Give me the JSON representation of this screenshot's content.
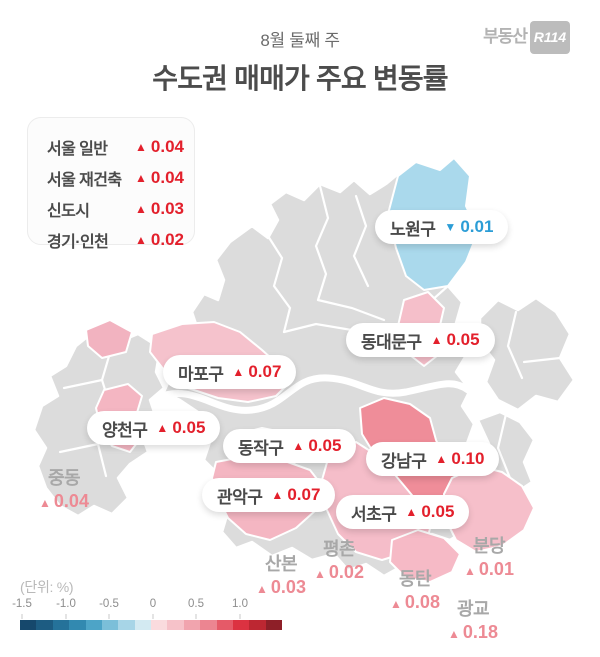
{
  "header": {
    "subtitle": "8월 둘째 주",
    "title": "수도권 매매가 주요 변동률"
  },
  "logo": {
    "text": "부동산",
    "badge": "R114"
  },
  "summary": {
    "items": [
      {
        "label": "서울 일반",
        "arrow": "▲",
        "value": "0.04",
        "direction": "up"
      },
      {
        "label": "서울 재건축",
        "arrow": "▲",
        "value": "0.04",
        "direction": "up"
      },
      {
        "label": "신도시",
        "arrow": "▲",
        "value": "0.03",
        "direction": "up"
      },
      {
        "label": "경기·인천",
        "arrow": "▲",
        "value": "0.02",
        "direction": "up"
      }
    ]
  },
  "map": {
    "districts": [
      {
        "name": "노원구",
        "arrow": "▼",
        "value": "0.01",
        "direction": "down"
      },
      {
        "name": "동대문구",
        "arrow": "▲",
        "value": "0.05",
        "direction": "up"
      },
      {
        "name": "마포구",
        "arrow": "▲",
        "value": "0.07",
        "direction": "up"
      },
      {
        "name": "양천구",
        "arrow": "▲",
        "value": "0.05",
        "direction": "up"
      },
      {
        "name": "동작구",
        "arrow": "▲",
        "value": "0.05",
        "direction": "up"
      },
      {
        "name": "강남구",
        "arrow": "▲",
        "value": "0.10",
        "direction": "up"
      },
      {
        "name": "관악구",
        "arrow": "▲",
        "value": "0.07",
        "direction": "up"
      },
      {
        "name": "서초구",
        "arrow": "▲",
        "value": "0.05",
        "direction": "up"
      }
    ],
    "satellites": [
      {
        "name": "중동",
        "arrow": "▲",
        "value": "0.04"
      },
      {
        "name": "산본",
        "arrow": "▲",
        "value": "0.03"
      },
      {
        "name": "평촌",
        "arrow": "▲",
        "value": "0.02"
      },
      {
        "name": "동탄",
        "arrow": "▲",
        "value": "0.08"
      },
      {
        "name": "분당",
        "arrow": "▲",
        "value": "0.01"
      },
      {
        "name": "광교",
        "arrow": "▲",
        "value": "0.18"
      }
    ]
  },
  "scale": {
    "unit_label": "(단위:  %)",
    "ticks": [
      "-1.5",
      "-1.0",
      "-0.5",
      "0",
      "0.5",
      "1.0"
    ],
    "colors": [
      "#16486c",
      "#1d5c82",
      "#25729a",
      "#3289b0",
      "#4da4c7",
      "#7bbfd9",
      "#a7d5e7",
      "#d3eaf2",
      "#fadbde",
      "#f6c2c9",
      "#f1a4ae",
      "#ec8591",
      "#e55a68",
      "#dc3241",
      "#bd2732",
      "#8e1f28"
    ]
  },
  "colors": {
    "up_red": "#e3202c",
    "down_blue": "#2b9dd6",
    "district_gray": "#dcdcdc",
    "nowon_blue": "#aad9ec",
    "pink_light": "#f5c2cc",
    "pink_medium": "#f4b6c2",
    "pink_strong": "#ef8d99",
    "satellite_value_pink": "#ed8a94"
  }
}
